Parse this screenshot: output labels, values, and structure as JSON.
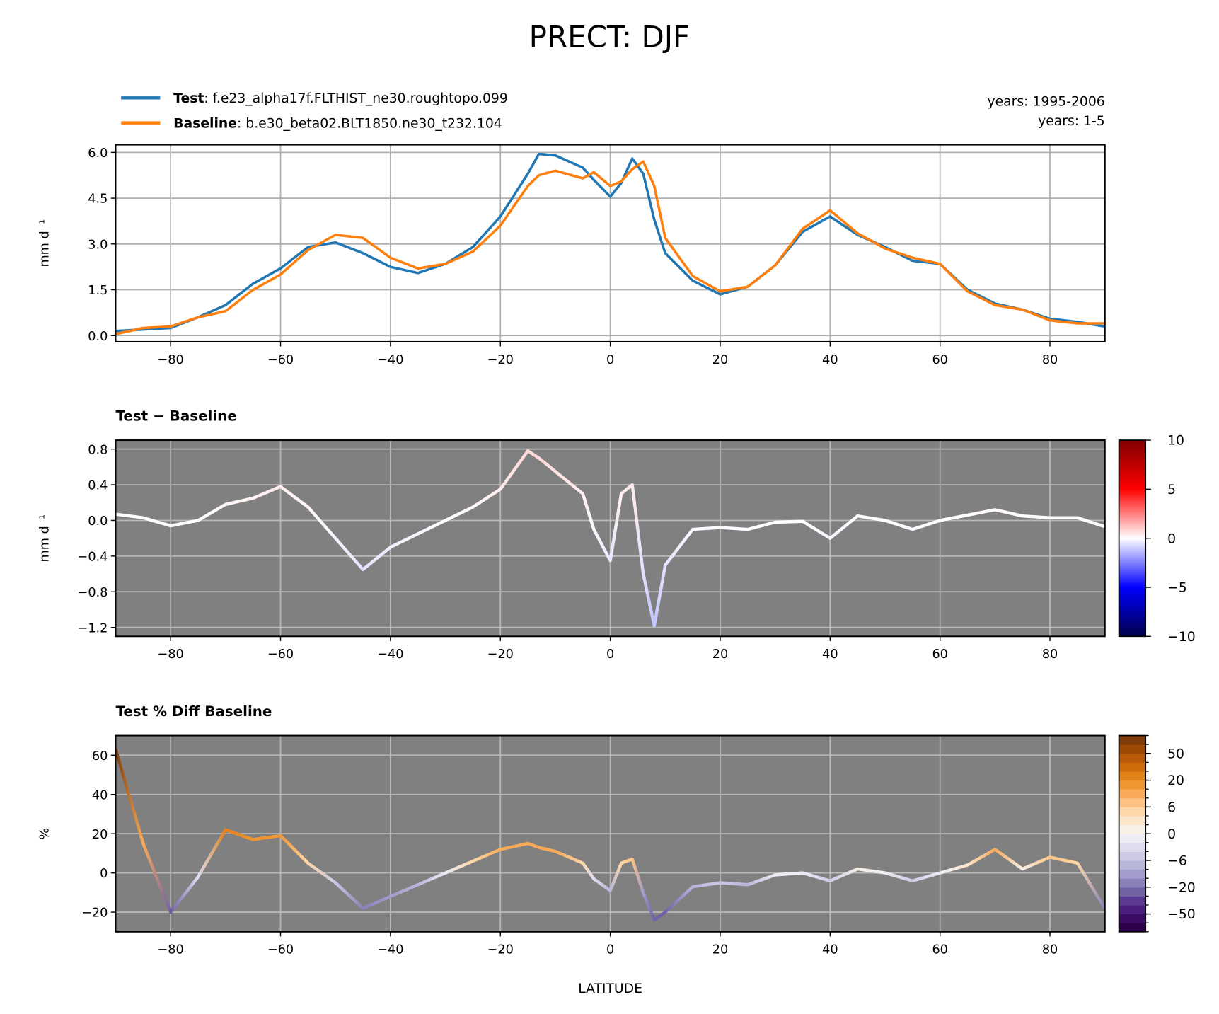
{
  "chart_data": [
    {
      "type": "line",
      "title": "PRECT: DJF",
      "ylabel": "mm d⁻¹",
      "x": [
        -90,
        -85,
        -80,
        -75,
        -70,
        -65,
        -60,
        -55,
        -50,
        -45,
        -40,
        -35,
        -30,
        -25,
        -20,
        -15,
        -13,
        -10,
        -5,
        -3,
        0,
        2,
        4,
        6,
        8,
        10,
        15,
        20,
        25,
        30,
        35,
        40,
        45,
        50,
        55,
        60,
        65,
        70,
        75,
        80,
        85,
        90
      ],
      "series": [
        {
          "name": "Test",
          "case": ": f.e23_alpha17f.FLTHIST_ne30.roughtopo.099",
          "color": "#1f77b4",
          "values": [
            0.15,
            0.2,
            0.25,
            0.6,
            1.0,
            1.7,
            2.2,
            2.9,
            3.05,
            2.7,
            2.25,
            2.05,
            2.35,
            2.9,
            3.9,
            5.3,
            5.95,
            5.9,
            5.5,
            5.1,
            4.55,
            5.0,
            5.8,
            5.3,
            3.8,
            2.7,
            1.8,
            1.35,
            1.6,
            2.3,
            3.4,
            3.9,
            3.3,
            2.9,
            2.45,
            2.35,
            1.5,
            1.05,
            0.85,
            0.55,
            0.45,
            0.3
          ]
        },
        {
          "name": "Baseline",
          "case": ": b.e30_beta02.BLT1850.ne30_t232.104",
          "color": "#ff7f0e",
          "values": [
            0.05,
            0.25,
            0.3,
            0.6,
            0.8,
            1.5,
            2.0,
            2.8,
            3.3,
            3.2,
            2.55,
            2.2,
            2.35,
            2.75,
            3.6,
            4.9,
            5.25,
            5.4,
            5.15,
            5.35,
            4.9,
            5.05,
            5.45,
            5.7,
            4.9,
            3.2,
            1.95,
            1.45,
            1.6,
            2.3,
            3.5,
            4.1,
            3.35,
            2.85,
            2.55,
            2.35,
            1.45,
            1.0,
            0.85,
            0.5,
            0.4,
            0.4
          ]
        }
      ],
      "annotations": [
        "years: 1995-2006",
        "years: 1-5"
      ],
      "xlim": [
        -90,
        90
      ],
      "xticks": [
        {
          "value": -80,
          "label": "−80"
        },
        {
          "value": -60,
          "label": "−60"
        },
        {
          "value": -40,
          "label": "−40"
        },
        {
          "value": -20,
          "label": "−20"
        },
        0,
        20,
        40,
        60,
        80
      ],
      "ylim": [
        -0.2,
        6.25
      ],
      "yticks": [
        {
          "value": 0,
          "label": "0.0"
        },
        {
          "value": 1.5,
          "label": "1.5"
        },
        {
          "value": 3,
          "label": "3.0"
        },
        {
          "value": 4.5,
          "label": "4.5"
        },
        {
          "value": 6,
          "label": "6.0"
        }
      ],
      "grid": true,
      "background": "#ffffff",
      "grid_color": "#b0b0b0"
    },
    {
      "type": "colored_line",
      "title": "Test − Baseline",
      "ylabel": "mm d⁻¹",
      "x": [
        -90,
        -85,
        -80,
        -75,
        -70,
        -65,
        -60,
        -55,
        -50,
        -45,
        -40,
        -35,
        -30,
        -25,
        -20,
        -15,
        -13,
        -10,
        -5,
        -3,
        0,
        2,
        4,
        6,
        8,
        10,
        15,
        20,
        25,
        30,
        35,
        40,
        45,
        50,
        55,
        60,
        65,
        70,
        75,
        80,
        85,
        90
      ],
      "values": [
        0.07,
        0.03,
        -0.06,
        0.0,
        0.18,
        0.25,
        0.38,
        0.15,
        -0.2,
        -0.55,
        -0.3,
        -0.15,
        0.0,
        0.15,
        0.35,
        0.78,
        0.7,
        0.55,
        0.3,
        -0.1,
        -0.45,
        0.3,
        0.4,
        -0.6,
        -1.18,
        -0.5,
        -0.1,
        -0.08,
        -0.1,
        -0.02,
        -0.01,
        -0.2,
        0.05,
        0.0,
        -0.1,
        0.0,
        0.06,
        0.12,
        0.05,
        0.03,
        0.03,
        -0.07
      ],
      "xlim": [
        -90,
        90
      ],
      "xticks": [
        {
          "value": -80,
          "label": "−80"
        },
        {
          "value": -60,
          "label": "−60"
        },
        {
          "value": -40,
          "label": "−40"
        },
        {
          "value": -20,
          "label": "−20"
        },
        0,
        20,
        40,
        60,
        80
      ],
      "ylim": [
        -1.3,
        0.9
      ],
      "yticks": [
        {
          "value": -1.2,
          "label": "−1.2"
        },
        {
          "value": -0.8,
          "label": "−0.8"
        },
        {
          "value": -0.4,
          "label": "−0.4"
        },
        {
          "value": 0,
          "label": "0.0"
        },
        {
          "value": 0.4,
          "label": "0.4"
        },
        {
          "value": 0.8,
          "label": "0.8"
        }
      ],
      "grid": true,
      "background": "#808080",
      "grid_color": "#b8b8b8",
      "colorbar": {
        "kind": "continuous",
        "lim": [
          -10,
          10
        ],
        "ticks": [
          {
            "value": -10,
            "label": "−10"
          },
          {
            "value": -5,
            "label": "−5"
          },
          0,
          5,
          10
        ],
        "colors": [
          "#00004c",
          "#0000ff",
          "#ffffff",
          "#ff0000",
          "#800000"
        ]
      }
    },
    {
      "type": "colored_line",
      "title": "Test % Diff Baseline",
      "ylabel": "%",
      "xlabel": "LATITUDE",
      "x": [
        -90,
        -85,
        -80,
        -75,
        -70,
        -65,
        -60,
        -55,
        -50,
        -45,
        -40,
        -35,
        -30,
        -25,
        -20,
        -15,
        -13,
        -10,
        -5,
        -3,
        0,
        2,
        4,
        6,
        8,
        10,
        15,
        20,
        25,
        30,
        35,
        40,
        45,
        50,
        55,
        60,
        65,
        70,
        75,
        80,
        85,
        90
      ],
      "values": [
        63,
        15,
        -20,
        -2,
        22,
        17,
        19,
        5,
        -5,
        -18,
        -12,
        -6,
        0,
        6,
        12,
        15,
        13,
        11,
        5,
        -3,
        -9,
        5,
        7,
        -10,
        -24,
        -20,
        -7,
        -5,
        -6,
        -1,
        0,
        -4,
        2,
        0,
        -4,
        0,
        4,
        12,
        2,
        8,
        5,
        -18
      ],
      "xlim": [
        -90,
        90
      ],
      "xticks": [
        {
          "value": -80,
          "label": "−80"
        },
        {
          "value": -60,
          "label": "−60"
        },
        {
          "value": -40,
          "label": "−40"
        },
        {
          "value": -20,
          "label": "−20"
        },
        0,
        20,
        40,
        60,
        80
      ],
      "ylim": [
        -30,
        70
      ],
      "yticks": [
        {
          "value": -20,
          "label": "−20"
        },
        0,
        20,
        40,
        60
      ],
      "grid": true,
      "background": "#808080",
      "grid_color": "#b8b8b8",
      "colorbar": {
        "kind": "discrete",
        "bounds": [
          -70,
          -60,
          -50,
          -40,
          -30,
          -20,
          -15,
          -10,
          -6,
          -4,
          -2,
          0,
          2,
          4,
          6,
          10,
          15,
          20,
          30,
          40,
          50,
          60,
          70
        ],
        "ticks": [
          {
            "value": -50,
            "label": "−50"
          },
          {
            "value": -20,
            "label": "−20"
          },
          {
            "value": -6,
            "label": "−6"
          },
          0,
          6,
          20,
          50
        ],
        "colors": [
          "#2d004b",
          "#3b0d66",
          "#4a1f80",
          "#5d3a93",
          "#7262a4",
          "#8a81b8",
          "#a29dcc",
          "#b9b6dc",
          "#ccc9e5",
          "#dedcee",
          "#eeedf5",
          "#f8f1e8",
          "#fbe5cb",
          "#fdd7a8",
          "#fdc283",
          "#f9aa59",
          "#ef9633",
          "#e1811a",
          "#d06b0b",
          "#b85a08",
          "#9d4906",
          "#7f3b08"
        ]
      }
    }
  ]
}
